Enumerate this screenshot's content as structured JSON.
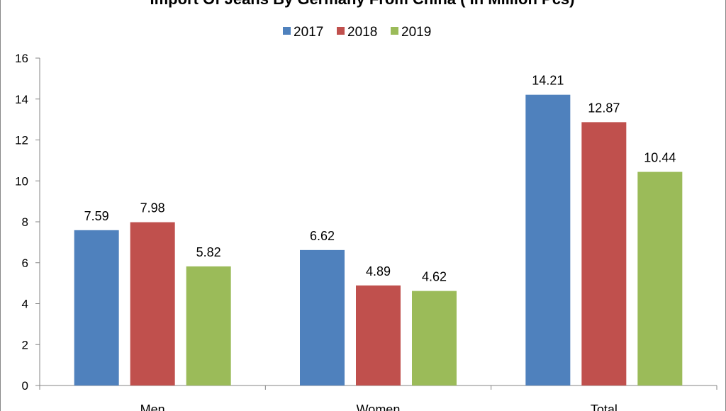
{
  "chart_data": {
    "type": "bar",
    "title": "Import Of Jeans By Germany From China ( In Million Pcs)",
    "categories": [
      "Men",
      "Women",
      "Total"
    ],
    "series": [
      {
        "name": "2017",
        "values": [
          7.59,
          6.62,
          14.21
        ],
        "color": "#4F81BD"
      },
      {
        "name": "2018",
        "values": [
          7.98,
          4.89,
          12.87
        ],
        "color": "#C0504D"
      },
      {
        "name": "2019",
        "values": [
          5.82,
          4.62,
          10.44
        ],
        "color": "#9BBB59"
      }
    ],
    "ylim": [
      0,
      16
    ],
    "yticks": [
      "0",
      "2",
      "4",
      "6",
      "8",
      "10",
      "12",
      "14",
      "16"
    ],
    "legend_position": "top-center",
    "grid": false,
    "data_labels": true
  }
}
